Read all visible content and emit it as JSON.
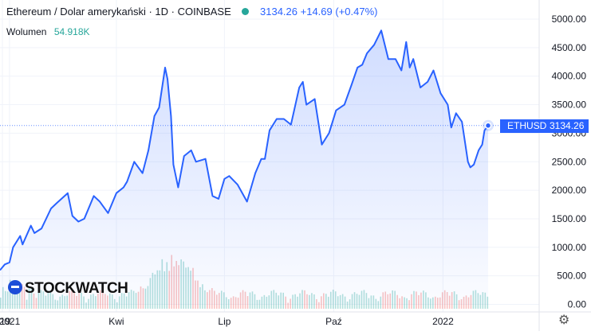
{
  "legend": {
    "symbol_title": "Ethereum / Dolar amerykański · 1D · COINBASE",
    "last_price": "3134.26",
    "change": "+14.69",
    "change_pct": "(+0.47%)",
    "volume_label": "Wolumen",
    "volume_value": "54.918K"
  },
  "price_tag": {
    "symbol": "ETHUSD",
    "value": "3134.26"
  },
  "watermark": "STOCKWATCH",
  "colors": {
    "line": "#2962ff",
    "fill": "#2962ff",
    "vol_up": "#26a69a",
    "vol_down": "#ef5350",
    "dot": "#26a69a"
  },
  "chart_data": {
    "type": "area",
    "title": "Ethereum / Dolar amerykański · 1D · COINBASE",
    "ylim": [
      0,
      5000
    ],
    "y_ticks": [
      0,
      500,
      1000,
      1500,
      2000,
      2500,
      3000,
      3500,
      4000,
      4500,
      5000
    ],
    "y_tick_labels": [
      "0.00",
      "500.00",
      "1000.00",
      "1500.00",
      "2000.00",
      "2500.00",
      "3000.00",
      "3500.00",
      "4000.00",
      "4500.00",
      "5000.00"
    ],
    "x_tick_labels": [
      "19",
      "2021",
      "Kwi",
      "Lip",
      "Paź",
      "2022"
    ],
    "x_range": [
      "2020-12-24",
      "2022-02-08"
    ],
    "x_tick_dates": [
      "2020-12-26",
      "2021-01-01",
      "2021-04-01",
      "2021-07-01",
      "2021-10-01",
      "2022-01-01"
    ],
    "last_value": 3134.26,
    "series": [
      {
        "name": "ETHUSD",
        "points": [
          [
            "2020-12-24",
            600
          ],
          [
            "2020-12-28",
            700
          ],
          [
            "2021-01-01",
            735
          ],
          [
            "2021-01-04",
            1000
          ],
          [
            "2021-01-10",
            1200
          ],
          [
            "2021-01-12",
            1050
          ],
          [
            "2021-01-19",
            1380
          ],
          [
            "2021-01-22",
            1250
          ],
          [
            "2021-01-28",
            1330
          ],
          [
            "2021-02-05",
            1680
          ],
          [
            "2021-02-10",
            1780
          ],
          [
            "2021-02-19",
            1950
          ],
          [
            "2021-02-23",
            1550
          ],
          [
            "2021-02-28",
            1450
          ],
          [
            "2021-03-05",
            1500
          ],
          [
            "2021-03-13",
            1900
          ],
          [
            "2021-03-18",
            1800
          ],
          [
            "2021-03-25",
            1600
          ],
          [
            "2021-04-01",
            1950
          ],
          [
            "2021-04-07",
            2050
          ],
          [
            "2021-04-10",
            2150
          ],
          [
            "2021-04-16",
            2500
          ],
          [
            "2021-04-23",
            2300
          ],
          [
            "2021-04-28",
            2700
          ],
          [
            "2021-05-03",
            3300
          ],
          [
            "2021-05-07",
            3450
          ],
          [
            "2021-05-12",
            4150
          ],
          [
            "2021-05-14",
            3950
          ],
          [
            "2021-05-17",
            3300
          ],
          [
            "2021-05-19",
            2450
          ],
          [
            "2021-05-23",
            2050
          ],
          [
            "2021-05-28",
            2600
          ],
          [
            "2021-06-03",
            2700
          ],
          [
            "2021-06-07",
            2500
          ],
          [
            "2021-06-15",
            2550
          ],
          [
            "2021-06-21",
            1900
          ],
          [
            "2021-06-26",
            1850
          ],
          [
            "2021-07-01",
            2200
          ],
          [
            "2021-07-05",
            2250
          ],
          [
            "2021-07-12",
            2100
          ],
          [
            "2021-07-20",
            1800
          ],
          [
            "2021-07-27",
            2300
          ],
          [
            "2021-08-01",
            2550
          ],
          [
            "2021-08-04",
            2550
          ],
          [
            "2021-08-08",
            3050
          ],
          [
            "2021-08-14",
            3250
          ],
          [
            "2021-08-20",
            3250
          ],
          [
            "2021-08-26",
            3150
          ],
          [
            "2021-09-02",
            3800
          ],
          [
            "2021-09-05",
            3900
          ],
          [
            "2021-09-08",
            3500
          ],
          [
            "2021-09-15",
            3600
          ],
          [
            "2021-09-21",
            2800
          ],
          [
            "2021-09-27",
            3000
          ],
          [
            "2021-10-03",
            3400
          ],
          [
            "2021-10-10",
            3500
          ],
          [
            "2021-10-16",
            3850
          ],
          [
            "2021-10-21",
            4150
          ],
          [
            "2021-10-25",
            4200
          ],
          [
            "2021-10-29",
            4400
          ],
          [
            "2021-11-04",
            4550
          ],
          [
            "2021-11-10",
            4800
          ],
          [
            "2021-11-16",
            4300
          ],
          [
            "2021-11-22",
            4300
          ],
          [
            "2021-11-27",
            4100
          ],
          [
            "2021-12-01",
            4600
          ],
          [
            "2021-12-04",
            4150
          ],
          [
            "2021-12-07",
            4300
          ],
          [
            "2021-12-13",
            3800
          ],
          [
            "2021-12-19",
            3900
          ],
          [
            "2021-12-24",
            4100
          ],
          [
            "2021-12-30",
            3700
          ],
          [
            "2022-01-05",
            3500
          ],
          [
            "2022-01-08",
            3100
          ],
          [
            "2022-01-12",
            3350
          ],
          [
            "2022-01-17",
            3200
          ],
          [
            "2022-01-22",
            2500
          ],
          [
            "2022-01-24",
            2400
          ],
          [
            "2022-01-27",
            2450
          ],
          [
            "2022-01-31",
            2700
          ],
          [
            "2022-02-03",
            2800
          ],
          [
            "2022-02-05",
            3050
          ],
          [
            "2022-02-08",
            3134
          ]
        ]
      }
    ],
    "volume_peak_date": "2021-05-19"
  }
}
